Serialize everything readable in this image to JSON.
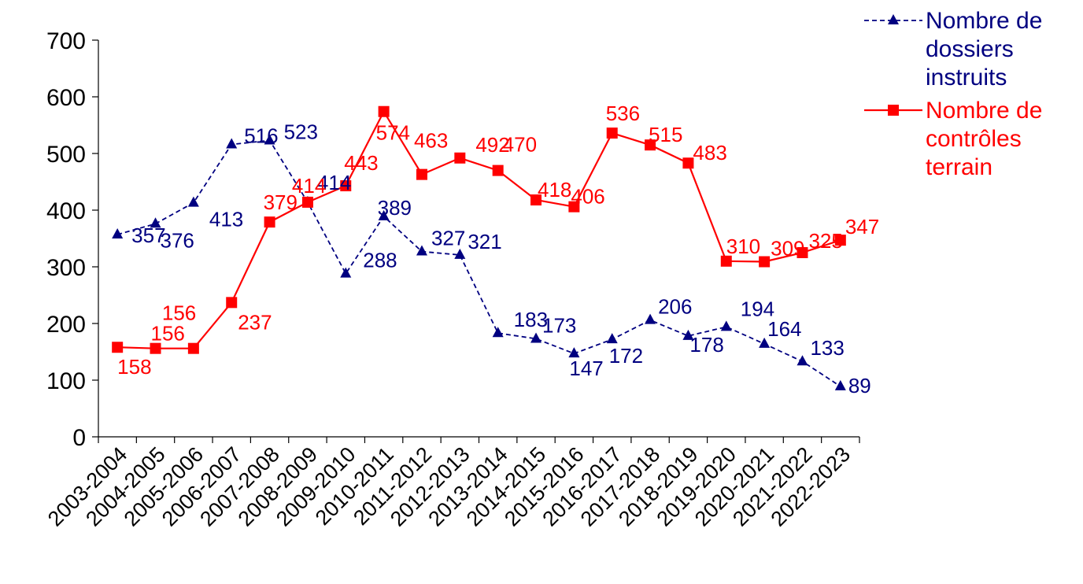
{
  "chart_data": {
    "type": "line",
    "title": "",
    "xlabel": "",
    "ylabel": "",
    "ylim": [
      0,
      700
    ],
    "yticks": [
      0,
      100,
      200,
      300,
      400,
      500,
      600,
      700
    ],
    "grid": false,
    "legend_position": "top-right",
    "categories": [
      "2003-2004",
      "2004-2005",
      "2005-2006",
      "2006-2007",
      "2007-2008",
      "2008-2009",
      "2009-2010",
      "2010-2011",
      "2011-2012",
      "2012-2013",
      "2013-2014",
      "2014-2015",
      "2015-2016",
      "2016-2017",
      "2017-2018",
      "2018-2019",
      "2019-2020",
      "2020-2021",
      "2021-2022",
      "2022-2023"
    ],
    "series": [
      {
        "name": "Nombre de dossiers instruits",
        "legend_lines": [
          "Nombre de",
          "dossiers",
          "instruits"
        ],
        "color": "#000080",
        "marker": "triangle",
        "line_style": "dashed",
        "values": [
          357,
          376,
          413,
          516,
          523,
          414,
          288,
          389,
          327,
          321,
          183,
          173,
          147,
          172,
          206,
          178,
          194,
          164,
          133,
          89
        ]
      },
      {
        "name": "Nombre de contrôles terrain",
        "legend_lines": [
          "Nombre de",
          "contrôles",
          "terrain"
        ],
        "color": "#ff0000",
        "marker": "square",
        "line_style": "solid",
        "values": [
          158,
          156,
          156,
          237,
          379,
          414,
          443,
          574,
          463,
          492,
          470,
          418,
          406,
          536,
          515,
          483,
          310,
          309,
          325,
          347
        ]
      }
    ]
  }
}
